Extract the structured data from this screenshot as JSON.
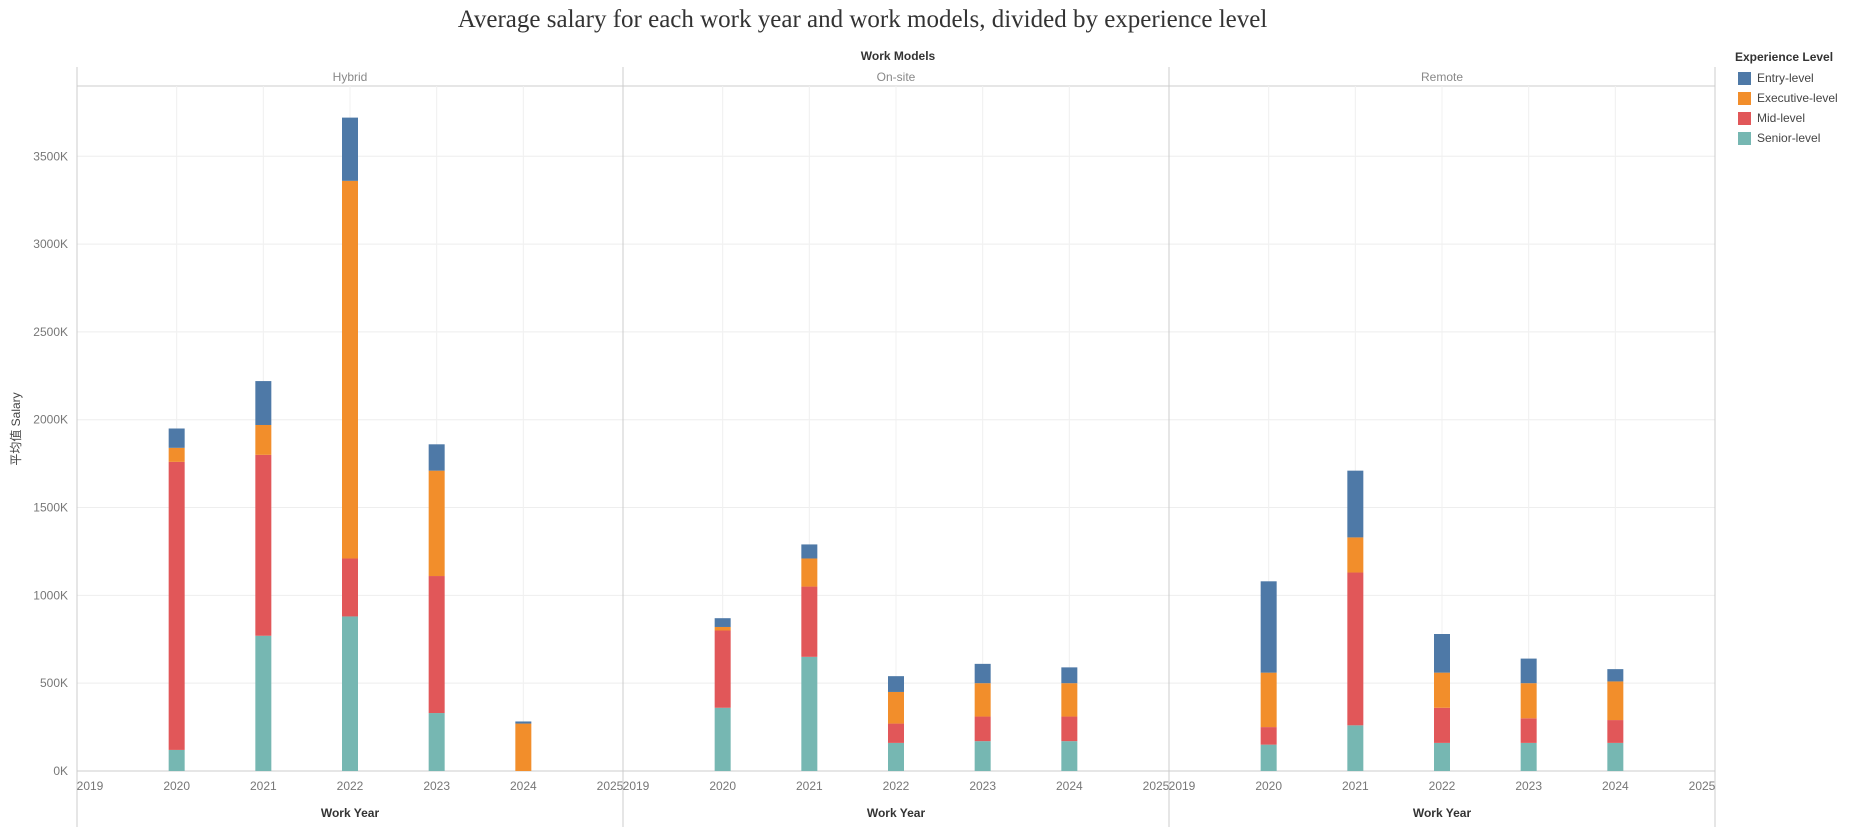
{
  "chart_data": {
    "type": "bar",
    "stacked": true,
    "title": "Average salary for each work year and work models, divided by experience level",
    "column_header_title": "Work Models",
    "xlabel": "Work Year",
    "ylabel": "平均值 Salary",
    "ylim": [
      0,
      3900000
    ],
    "yticks": [
      0,
      500000,
      1000000,
      1500000,
      2000000,
      2500000,
      3000000,
      3500000
    ],
    "ytick_labels": [
      "0K",
      "500K",
      "1000K",
      "1500K",
      "2000K",
      "2500K",
      "3000K",
      "3500K"
    ],
    "x_ticks": [
      "2019",
      "2020",
      "2021",
      "2022",
      "2023",
      "2024",
      "2025"
    ],
    "legend_title": "Experience Level",
    "legend_position": "right",
    "grid": true,
    "stack_order": [
      "Senior-level",
      "Mid-level",
      "Executive-level",
      "Entry-level"
    ],
    "levels": [
      {
        "name": "Entry-level",
        "color": "#4e79a7"
      },
      {
        "name": "Executive-level",
        "color": "#f28e2b"
      },
      {
        "name": "Mid-level",
        "color": "#e15759"
      },
      {
        "name": "Senior-level",
        "color": "#76b7b2"
      }
    ],
    "panels": [
      {
        "name": "Hybrid",
        "bars": [
          {
            "year": "2020",
            "Senior-level": 120000,
            "Mid-level": 1640000,
            "Executive-level": 80000,
            "Entry-level": 110000
          },
          {
            "year": "2021",
            "Senior-level": 770000,
            "Mid-level": 1030000,
            "Executive-level": 170000,
            "Entry-level": 250000
          },
          {
            "year": "2022",
            "Senior-level": 880000,
            "Mid-level": 330000,
            "Executive-level": 2150000,
            "Entry-level": 360000
          },
          {
            "year": "2023",
            "Senior-level": 330000,
            "Mid-level": 780000,
            "Executive-level": 600000,
            "Entry-level": 150000
          },
          {
            "year": "2024",
            "Executive-level": 270000,
            "Entry-level": 12000
          }
        ]
      },
      {
        "name": "On-site",
        "bars": [
          {
            "year": "2020",
            "Senior-level": 360000,
            "Mid-level": 440000,
            "Executive-level": 20000,
            "Entry-level": 50000
          },
          {
            "year": "2021",
            "Senior-level": 650000,
            "Mid-level": 400000,
            "Executive-level": 160000,
            "Entry-level": 80000
          },
          {
            "year": "2022",
            "Senior-level": 160000,
            "Mid-level": 110000,
            "Executive-level": 180000,
            "Entry-level": 90000
          },
          {
            "year": "2023",
            "Senior-level": 170000,
            "Mid-level": 140000,
            "Executive-level": 190000,
            "Entry-level": 110000
          },
          {
            "year": "2024",
            "Senior-level": 170000,
            "Mid-level": 140000,
            "Executive-level": 190000,
            "Entry-level": 90000
          }
        ]
      },
      {
        "name": "Remote",
        "bars": [
          {
            "year": "2020",
            "Senior-level": 150000,
            "Mid-level": 100000,
            "Executive-level": 310000,
            "Entry-level": 520000
          },
          {
            "year": "2021",
            "Senior-level": 260000,
            "Mid-level": 870000,
            "Executive-level": 200000,
            "Entry-level": 380000
          },
          {
            "year": "2022",
            "Senior-level": 160000,
            "Mid-level": 200000,
            "Executive-level": 200000,
            "Entry-level": 220000
          },
          {
            "year": "2023",
            "Senior-level": 160000,
            "Mid-level": 140000,
            "Executive-level": 200000,
            "Entry-level": 140000
          },
          {
            "year": "2024",
            "Senior-level": 160000,
            "Mid-level": 130000,
            "Executive-level": 220000,
            "Entry-level": 70000
          }
        ]
      }
    ]
  }
}
